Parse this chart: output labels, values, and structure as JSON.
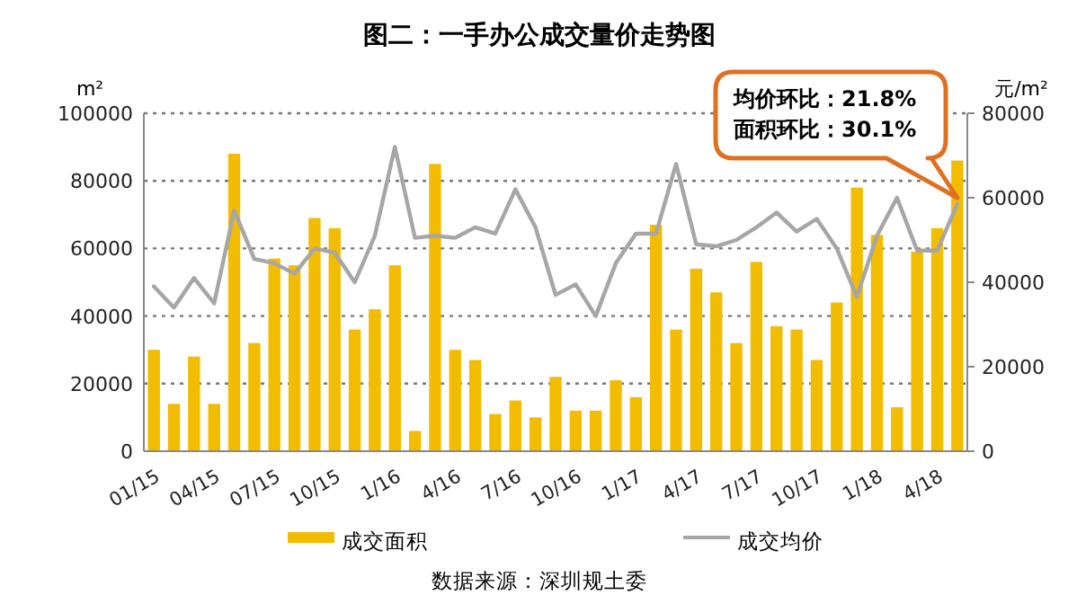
{
  "chart_data": {
    "type": "bar",
    "title": "图二：一手办公成交量价走势图",
    "categories": [
      "01/15",
      null,
      null,
      "04/15",
      null,
      null,
      "07/15",
      null,
      null,
      "10/15",
      null,
      null,
      "1/16",
      null,
      null,
      "4/16",
      null,
      null,
      "7/16",
      null,
      null,
      "10/16",
      null,
      null,
      "1/17",
      null,
      null,
      "4/17",
      null,
      null,
      "7/17",
      null,
      null,
      "10/17",
      null,
      null,
      "1/18",
      null,
      null,
      "4/18",
      null
    ],
    "ylabel": "m²",
    "y2label": "元/m²",
    "series": [
      {
        "name": "成交面积",
        "color": "#f2bc00",
        "values": [
          30000,
          14000,
          28000,
          14000,
          88000,
          32000,
          57000,
          55000,
          69000,
          66000,
          36000,
          42000,
          55000,
          6000,
          85000,
          30000,
          27000,
          11000,
          15000,
          10000,
          22000,
          12000,
          12000,
          21000,
          16000,
          67000,
          36000,
          54000,
          47000,
          32000,
          56000,
          37000,
          36000,
          27000,
          44000,
          78000,
          64000,
          13000,
          59000,
          66000,
          86000
        ]
      },
      {
        "name": "成交均价",
        "type": "line",
        "axis": "y2",
        "color": "#a6a6a6",
        "values": [
          39000,
          34000,
          41000,
          35000,
          57000,
          45500,
          44500,
          42000,
          48000,
          47000,
          40000,
          51000,
          72000,
          50500,
          51000,
          50500,
          53000,
          51500,
          62000,
          53000,
          37000,
          39500,
          32000,
          44500,
          51500,
          51500,
          68000,
          49000,
          48500,
          50000,
          53000,
          56500,
          52000,
          55000,
          48000,
          36500,
          51000,
          60000,
          47500,
          47500,
          58500
        ]
      }
    ],
    "ylim": [
      0,
      100000
    ],
    "yticks": [
      0,
      20000,
      40000,
      60000,
      80000,
      100000
    ],
    "y2lim": [
      0,
      80000
    ],
    "y2ticks": [
      0,
      20000,
      40000,
      60000,
      80000
    ],
    "grid": "y",
    "legend": "bottom",
    "annotations": [
      "均价环比：21.8%",
      "面积环比：30.1%",
      "数据来源：深圳规土委"
    ]
  }
}
